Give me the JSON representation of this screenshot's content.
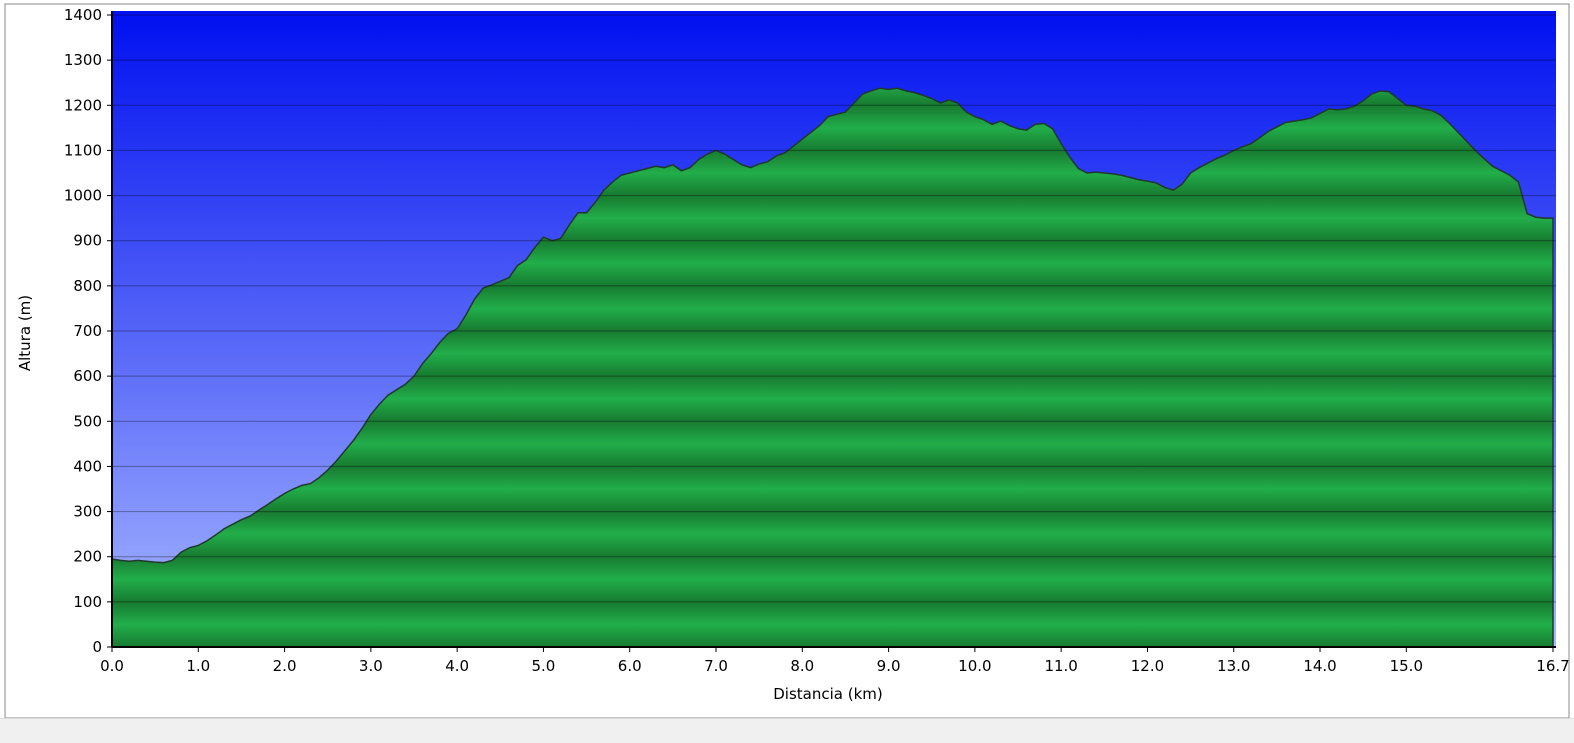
{
  "chart_data": {
    "type": "area",
    "xlabel": "Distancia   (km)",
    "ylabel": "Altura (m)",
    "x": [
      0.0,
      0.1,
      0.2,
      0.3,
      0.4,
      0.5,
      0.6,
      0.7,
      0.8,
      0.9,
      1.0,
      1.1,
      1.2,
      1.3,
      1.4,
      1.5,
      1.6,
      1.7,
      1.8,
      1.9,
      2.0,
      2.1,
      2.2,
      2.3,
      2.4,
      2.5,
      2.6,
      2.7,
      2.8,
      2.9,
      3.0,
      3.1,
      3.2,
      3.3,
      3.4,
      3.5,
      3.6,
      3.7,
      3.8,
      3.9,
      4.0,
      4.1,
      4.2,
      4.3,
      4.4,
      4.5,
      4.6,
      4.7,
      4.8,
      4.9,
      5.0,
      5.1,
      5.2,
      5.3,
      5.4,
      5.5,
      5.6,
      5.7,
      5.8,
      5.9,
      6.0,
      6.1,
      6.2,
      6.3,
      6.4,
      6.5,
      6.6,
      6.7,
      6.8,
      6.9,
      7.0,
      7.1,
      7.2,
      7.3,
      7.4,
      7.5,
      7.6,
      7.7,
      7.8,
      7.9,
      8.0,
      8.1,
      8.2,
      8.3,
      8.4,
      8.5,
      8.6,
      8.7,
      8.8,
      8.9,
      9.0,
      9.1,
      9.2,
      9.3,
      9.4,
      9.5,
      9.6,
      9.7,
      9.8,
      9.9,
      10.0,
      10.1,
      10.2,
      10.3,
      10.4,
      10.5,
      10.6,
      10.7,
      10.8,
      10.9,
      11.0,
      11.1,
      11.2,
      11.3,
      11.4,
      11.5,
      11.6,
      11.7,
      11.8,
      11.9,
      12.0,
      12.1,
      12.2,
      12.3,
      12.4,
      12.5,
      12.6,
      12.7,
      12.8,
      12.9,
      13.0,
      13.1,
      13.2,
      13.3,
      13.4,
      13.5,
      13.6,
      13.7,
      13.8,
      13.9,
      14.0,
      14.1,
      14.2,
      14.3,
      14.4,
      14.5,
      14.6,
      14.7,
      14.8,
      14.9,
      15.0,
      15.1,
      15.2,
      15.3,
      15.4,
      15.5,
      15.6,
      15.7,
      15.8,
      15.9,
      16.0,
      16.1,
      16.2,
      16.3,
      16.4,
      16.5,
      16.6,
      16.7
    ],
    "values": [
      195,
      192,
      190,
      192,
      190,
      188,
      187,
      192,
      210,
      220,
      225,
      235,
      248,
      262,
      272,
      282,
      290,
      303,
      315,
      328,
      340,
      350,
      358,
      362,
      375,
      392,
      412,
      435,
      458,
      485,
      515,
      538,
      558,
      570,
      582,
      600,
      628,
      650,
      675,
      695,
      705,
      735,
      770,
      795,
      802,
      810,
      818,
      845,
      858,
      885,
      908,
      900,
      905,
      935,
      962,
      962,
      985,
      1012,
      1030,
      1045,
      1050,
      1055,
      1060,
      1065,
      1062,
      1068,
      1055,
      1062,
      1080,
      1092,
      1100,
      1092,
      1080,
      1068,
      1062,
      1070,
      1075,
      1088,
      1095,
      1110,
      1125,
      1140,
      1155,
      1175,
      1180,
      1185,
      1205,
      1225,
      1232,
      1238,
      1235,
      1238,
      1232,
      1228,
      1222,
      1215,
      1205,
      1212,
      1205,
      1185,
      1175,
      1168,
      1158,
      1165,
      1155,
      1148,
      1145,
      1158,
      1160,
      1148,
      1115,
      1085,
      1060,
      1050,
      1052,
      1050,
      1048,
      1045,
      1040,
      1035,
      1032,
      1028,
      1018,
      1012,
      1025,
      1050,
      1062,
      1072,
      1082,
      1090,
      1100,
      1108,
      1115,
      1128,
      1142,
      1152,
      1162,
      1165,
      1168,
      1172,
      1182,
      1192,
      1190,
      1192,
      1198,
      1210,
      1225,
      1232,
      1230,
      1215,
      1200,
      1198,
      1192,
      1188,
      1178,
      1160,
      1140,
      1120,
      1100,
      1082,
      1065,
      1055,
      1045,
      1030,
      960,
      952,
      950,
      950
    ],
    "color": "#22ae4a",
    "xlim": [
      0,
      16.7
    ],
    "xticks": [
      {
        "value": 0,
        "label": "0.0"
      },
      {
        "value": 1,
        "label": "1.0"
      },
      {
        "value": 2,
        "label": "2.0"
      },
      {
        "value": 3,
        "label": "3.0"
      },
      {
        "value": 4,
        "label": "4.0"
      },
      {
        "value": 5,
        "label": "5.0"
      },
      {
        "value": 6,
        "label": "6.0"
      },
      {
        "value": 7,
        "label": "7.0"
      },
      {
        "value": 8,
        "label": "8.0"
      },
      {
        "value": 9,
        "label": "9.0"
      },
      {
        "value": 10,
        "label": "10.0"
      },
      {
        "value": 11,
        "label": "11.0"
      },
      {
        "value": 12,
        "label": "12.0"
      },
      {
        "value": 13,
        "label": "13.0"
      },
      {
        "value": 14,
        "label": "14.0"
      },
      {
        "value": 15,
        "label": "15.0"
      },
      16.7
    ],
    "ylim": [
      0,
      1400
    ],
    "yticks": [
      0,
      100,
      200,
      300,
      400,
      500,
      600,
      700,
      800,
      900,
      1000,
      1100,
      1200,
      1300,
      1400
    ],
    "grid": true
  }
}
